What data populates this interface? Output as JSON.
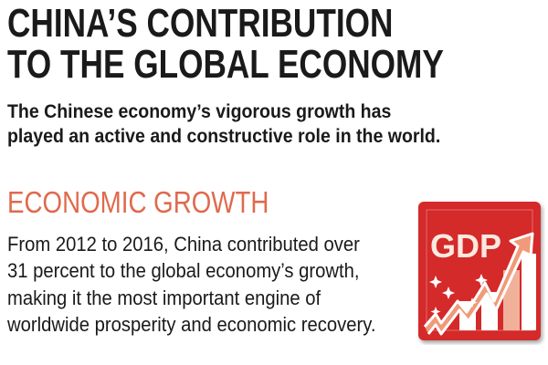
{
  "title_lines": [
    "CHINA’S CONTRIBUTION",
    "TO THE GLOBAL ECONOMY"
  ],
  "subtitle_lines": [
    "The Chinese economy’s vigorous growth has",
    "played an active and constructive role in the world."
  ],
  "section": {
    "heading": "ECONOMIC GROWTH",
    "body_lines": [
      "From 2012 to 2016, China contributed over",
      "31 percent to the global economy’s growth,",
      "making it the most important engine of",
      "worldwide prosperity and economic recovery."
    ]
  },
  "icon": {
    "name": "gdp-growth-icon",
    "label": "GDP",
    "colors": {
      "red": "#d42a2a",
      "salmon": "#ef9a7a",
      "white": "#ffffff"
    }
  },
  "colors": {
    "heading_accent": "#df6a4c",
    "text": "#1a1a1a"
  }
}
